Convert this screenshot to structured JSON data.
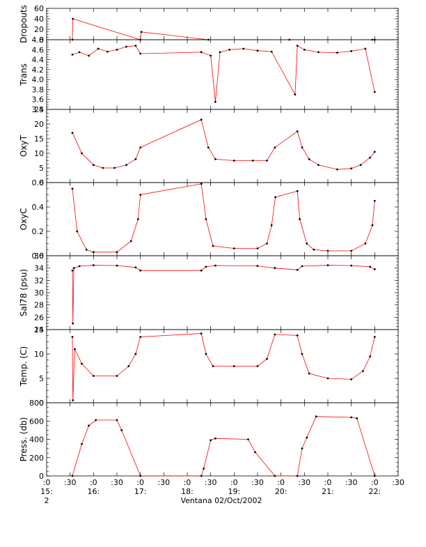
{
  "figure": {
    "xlabel": "Ventana 02/Oct/2002",
    "x_tick_labels": [
      ":0",
      ":30",
      ":0",
      ":30",
      ":0",
      ":30",
      ":0",
      ":30",
      ":0",
      ":30",
      ":0",
      ":30",
      ":0",
      ":30",
      ":0",
      ":30"
    ],
    "x_hour_labels": [
      "15:",
      "16:",
      "17:",
      "18:",
      "19:",
      "20:",
      "21:",
      "22:"
    ],
    "x_day_label": "2",
    "x_range_hours": [
      15.0,
      22.5
    ],
    "colors": {
      "data_points": "#000000",
      "connecting_line": "#ff0000",
      "axes": "#000000"
    }
  },
  "chart_data": [
    {
      "type": "line",
      "ylabel": "Dropouts",
      "ylim": [
        0,
        60
      ],
      "yticks": [
        "0",
        "20",
        "40",
        "60"
      ],
      "series": [
        {
          "x": [
            15.55,
            15.56,
            17.0,
            17.02,
            18.45,
            20.18,
            21.95,
            22.0
          ],
          "y": [
            0,
            40,
            0,
            15,
            0,
            0,
            0,
            0
          ]
        }
      ]
    },
    {
      "type": "line",
      "ylabel": "Trans",
      "ylim": [
        3.4,
        4.8
      ],
      "yticks": [
        "3.4",
        "3.6",
        "3.8",
        "4.0",
        "4.2",
        "4.4",
        "4.6",
        "4.8"
      ],
      "series": [
        {
          "x": [
            15.55,
            15.7,
            15.9,
            16.1,
            16.3,
            16.5,
            16.7,
            16.9,
            17.0,
            18.3,
            18.5,
            18.6,
            18.7,
            18.9,
            19.2,
            19.5,
            19.8,
            20.3,
            20.35,
            20.5,
            20.8,
            21.2,
            21.5,
            21.8,
            22.0
          ],
          "y": [
            4.5,
            4.55,
            4.48,
            4.62,
            4.56,
            4.6,
            4.66,
            4.68,
            4.52,
            4.55,
            4.48,
            3.55,
            4.55,
            4.6,
            4.62,
            4.58,
            4.56,
            3.7,
            4.68,
            4.6,
            4.55,
            4.54,
            4.57,
            4.62,
            3.75
          ]
        }
      ]
    },
    {
      "type": "line",
      "ylabel": "OxyT",
      "ylim": [
        0,
        25
      ],
      "yticks": [
        "0",
        "5",
        "10",
        "15",
        "20",
        "25"
      ],
      "series": [
        {
          "x": [
            15.55,
            15.75,
            16.0,
            16.2,
            16.45,
            16.7,
            16.9,
            17.0,
            18.3,
            18.45,
            18.6,
            19.0,
            19.4,
            19.7,
            19.87,
            20.35,
            20.45,
            20.6,
            20.8,
            21.2,
            21.5,
            21.7,
            21.9,
            22.0
          ],
          "y": [
            17,
            10,
            6,
            5,
            5,
            6,
            8,
            12,
            21.5,
            12,
            8,
            7.5,
            7.5,
            7.5,
            12,
            17.5,
            12,
            8,
            6,
            4.5,
            4.8,
            6,
            8.5,
            10.5
          ]
        }
      ]
    },
    {
      "type": "line",
      "ylabel": "OxyC",
      "ylim": [
        0,
        0.6
      ],
      "yticks": [
        "0.0",
        "0.2",
        "0.4",
        "0.6"
      ],
      "series": [
        {
          "x": [
            15.55,
            15.65,
            15.85,
            16.0,
            16.5,
            16.8,
            16.95,
            17.0,
            18.3,
            18.4,
            18.55,
            19.0,
            19.5,
            19.7,
            19.8,
            19.88,
            20.35,
            20.4,
            20.55,
            20.7,
            21.0,
            21.5,
            21.8,
            21.95,
            22.0
          ],
          "y": [
            0.55,
            0.2,
            0.05,
            0.03,
            0.03,
            0.12,
            0.3,
            0.5,
            0.59,
            0.3,
            0.08,
            0.06,
            0.06,
            0.1,
            0.25,
            0.48,
            0.53,
            0.3,
            0.1,
            0.05,
            0.04,
            0.04,
            0.1,
            0.25,
            0.45
          ]
        }
      ]
    },
    {
      "type": "line",
      "ylabel": "Sal78 (psu)",
      "ylim": [
        24,
        36
      ],
      "yticks": [
        "24",
        "26",
        "28",
        "30",
        "32",
        "34",
        "36"
      ],
      "series": [
        {
          "x": [
            15.55,
            15.56,
            15.58,
            15.7,
            16.0,
            16.5,
            16.9,
            17.0,
            18.3,
            18.4,
            18.6,
            19.5,
            19.87,
            20.35,
            20.45,
            21.0,
            21.5,
            21.9,
            22.0
          ],
          "y": [
            33.6,
            25.0,
            34.0,
            34.3,
            34.45,
            34.4,
            34.1,
            33.6,
            33.6,
            34.2,
            34.4,
            34.35,
            34.0,
            33.7,
            34.3,
            34.45,
            34.4,
            34.2,
            33.8
          ]
        }
      ]
    },
    {
      "type": "line",
      "ylabel": "Temp. (C)",
      "ylim": [
        0,
        15
      ],
      "yticks": [
        "0",
        "5",
        "10",
        "15"
      ],
      "series": [
        {
          "x": [
            15.55,
            15.56,
            15.6,
            15.75,
            16.0,
            16.5,
            16.75,
            16.9,
            17.0,
            18.3,
            18.4,
            18.55,
            19.0,
            19.5,
            19.7,
            19.87,
            20.35,
            20.45,
            20.6,
            21.0,
            21.5,
            21.75,
            21.9,
            22.0
          ],
          "y": [
            13.5,
            0.5,
            11,
            8,
            5.5,
            5.5,
            7.5,
            10,
            13.5,
            14.2,
            10,
            7.5,
            7.5,
            7.5,
            9,
            14,
            13.8,
            10,
            6,
            5,
            4.8,
            6.5,
            9.5,
            13.5
          ]
        }
      ]
    },
    {
      "type": "line",
      "ylabel": "Press. (db)",
      "ylim": [
        0,
        800
      ],
      "yticks": [
        "0",
        "200",
        "400",
        "600",
        "800"
      ],
      "series": [
        {
          "x": [
            15.55,
            15.75,
            15.9,
            16.05,
            16.5,
            16.6,
            17.0,
            18.3,
            18.35,
            18.5,
            18.6,
            19.3,
            19.45,
            19.87,
            20.35,
            20.45,
            20.55,
            20.75,
            21.5,
            21.62,
            22.0
          ],
          "y": [
            0,
            350,
            550,
            610,
            610,
            500,
            0,
            0,
            80,
            390,
            410,
            400,
            260,
            0,
            0,
            300,
            420,
            650,
            640,
            630,
            0
          ]
        }
      ]
    }
  ]
}
